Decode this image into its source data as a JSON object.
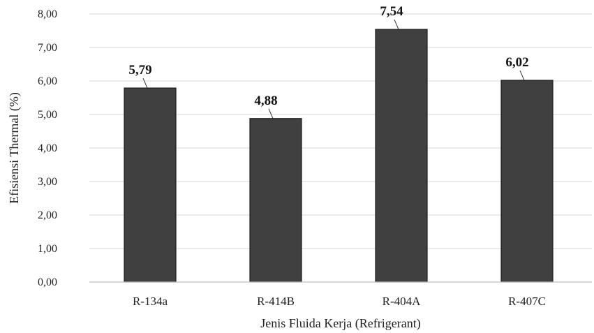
{
  "chart_data": {
    "type": "bar",
    "categories": [
      "R-134a",
      "R-414B",
      "R-404A",
      "R-407C"
    ],
    "values": [
      5.79,
      4.88,
      7.54,
      6.02
    ],
    "value_labels": [
      "5,79",
      "4,88",
      "7,54",
      "6,02"
    ],
    "xlabel": "Jenis Fluida Kerja (Refrigerant)",
    "ylabel": "Efisiensi Thermal (%)",
    "ylim": [
      0,
      8
    ],
    "yticks": [
      0,
      1,
      2,
      3,
      4,
      5,
      6,
      7,
      8
    ],
    "ytick_labels": [
      "0,00",
      "1,00",
      "2,00",
      "3,00",
      "4,00",
      "5,00",
      "6,00",
      "7,00",
      "8,00"
    ],
    "grid": true,
    "bar_color": "#404040",
    "bar_edge_color": "#1a1a1a"
  }
}
